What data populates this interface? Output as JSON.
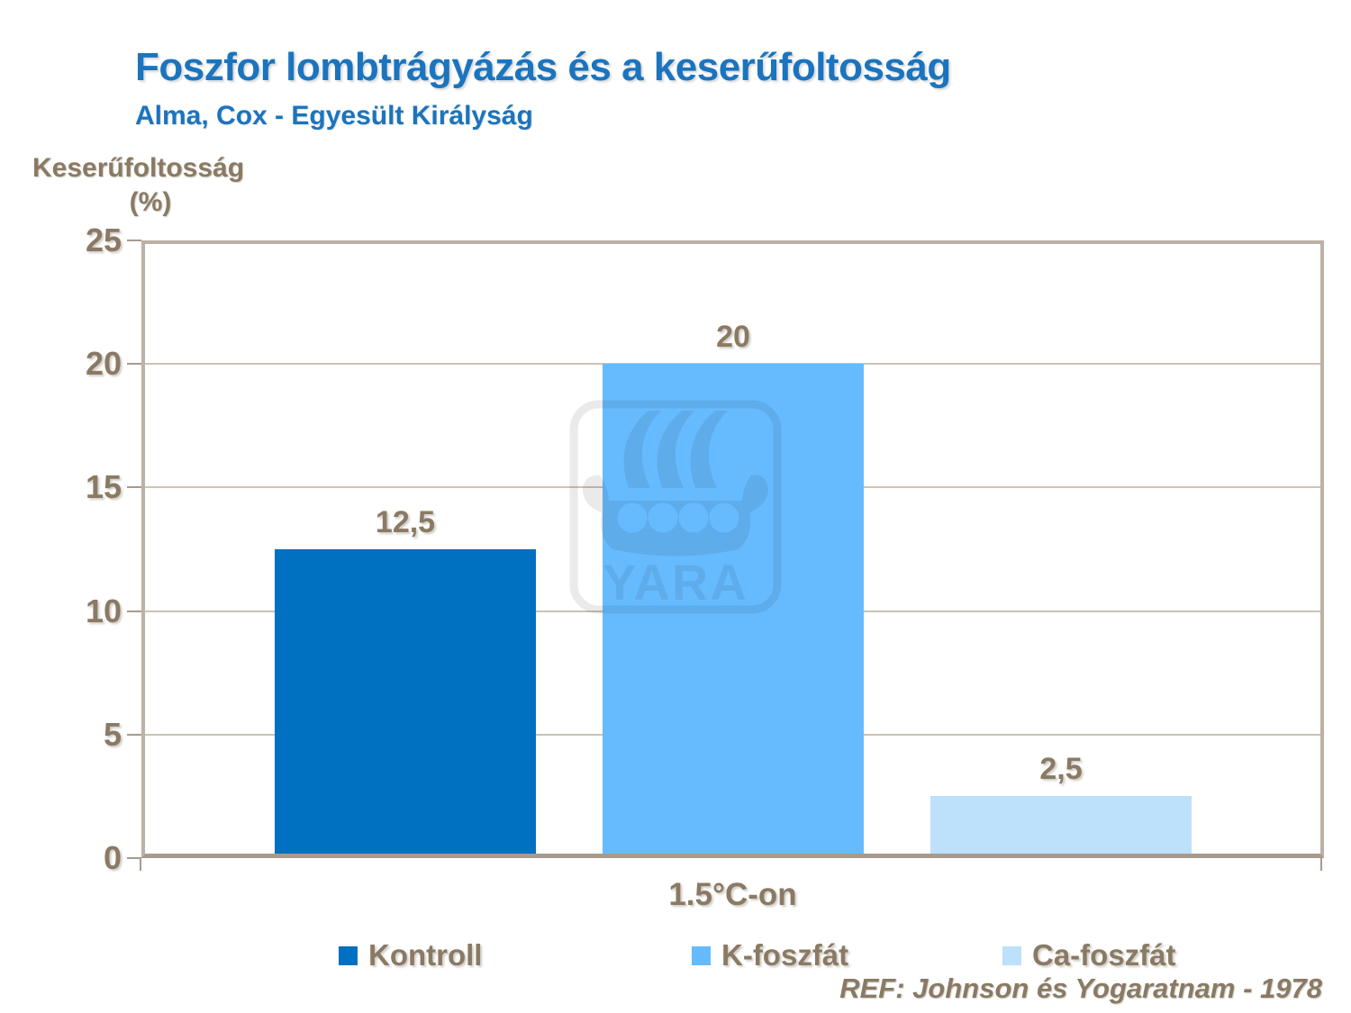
{
  "header": {
    "title": "Foszfor lombtrágyázás és a keserűfoltosság",
    "subtitle": "Alma, Cox - Egyesült Királyság"
  },
  "chart_data": {
    "type": "bar",
    "title": "Foszfor lombtrágyázás és a keserűfoltosság",
    "subtitle": "Alma, Cox - Egyesült Királyság",
    "categories": [
      "1.5°C-on"
    ],
    "series": [
      {
        "name": "Kontroll",
        "values": [
          12.5
        ],
        "label": "12,5",
        "color": "#0070C0"
      },
      {
        "name": "K-foszfát",
        "values": [
          20
        ],
        "label": "20",
        "color": "#66BBFF"
      },
      {
        "name": "Ca-foszfát",
        "values": [
          2.5
        ],
        "label": "2,5",
        "color": "#BDE0FB"
      }
    ],
    "xlabel": "1.5°C-on",
    "ylabel": "Keserűfoltosság (%)",
    "ylabel_lines": [
      "Keserűfoltosság",
      "(%)"
    ],
    "ylim": [
      0,
      25
    ],
    "yticks": [
      0,
      5,
      10,
      15,
      20,
      25
    ],
    "grid": true,
    "legend_position": "bottom"
  },
  "watermark": {
    "brand": "YARA"
  },
  "footer": {
    "text": "REF: Johnson és Yogaratnam - 1978"
  },
  "colors": {
    "title_blue": "#1B74BE",
    "text_brown": "#8A7A64",
    "axis_frame": "#BCB1A5",
    "gridline": "#CCC2B6",
    "bar_kontroll": "#0070C0",
    "bar_k_foszfat": "#66BBFF",
    "bar_ca_foszfat": "#BDE0FB"
  }
}
